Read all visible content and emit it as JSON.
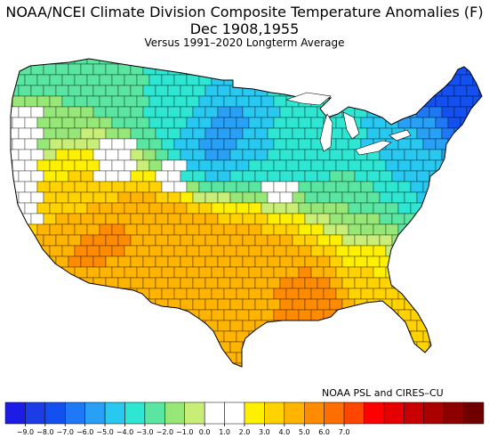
{
  "titles": {
    "main": "NOAA/NCEI Climate Division Composite Temperature Anomalies (F)",
    "period": "Dec  1908,1955",
    "baseline": "Versus 1991–2020 Longterm Average"
  },
  "credit": "NOAA PSL and CIRES–CU",
  "colors": {
    "missing": "#ffffff",
    "border": "#000000",
    "levels": [
      {
        "max": -8.5,
        "color": "#1c3ce6"
      },
      {
        "max": -7.5,
        "color": "#1450f0"
      },
      {
        "max": -6.5,
        "color": "#1f78f5"
      },
      {
        "max": -5.5,
        "color": "#28a0f5"
      },
      {
        "max": -4.5,
        "color": "#28c8f0"
      },
      {
        "max": -3.5,
        "color": "#2ee6d2"
      },
      {
        "max": -2.5,
        "color": "#5ae6a0"
      },
      {
        "max": -1.5,
        "color": "#96e678"
      },
      {
        "max": -0.5,
        "color": "#c8ee78"
      },
      {
        "max": 0.5,
        "color": "#fff000"
      },
      {
        "max": 1.5,
        "color": "#ffd200"
      },
      {
        "max": 2.5,
        "color": "#ffb400"
      },
      {
        "max": 3.5,
        "color": "#ff8c00"
      },
      {
        "max": 99,
        "color": "#ff6e00"
      }
    ]
  },
  "colorbar": {
    "bins": [
      {
        "color": "#1c1ce6"
      },
      {
        "color": "#1c3ce6"
      },
      {
        "color": "#1450f0"
      },
      {
        "color": "#1f78f5"
      },
      {
        "color": "#28a0f5"
      },
      {
        "color": "#28c8f0"
      },
      {
        "color": "#2ee6d2"
      },
      {
        "color": "#5ae6a0"
      },
      {
        "color": "#96e678"
      },
      {
        "color": "#c8ee78"
      },
      {
        "color": "#ffffff"
      },
      {
        "color": "#ffffff"
      },
      {
        "color": "#fff000"
      },
      {
        "color": "#ffd200"
      },
      {
        "color": "#ffb400"
      },
      {
        "color": "#ff8c00"
      },
      {
        "color": "#ff6e00"
      },
      {
        "color": "#ff4600"
      },
      {
        "color": "#ff0000"
      },
      {
        "color": "#e60000"
      },
      {
        "color": "#c80000"
      },
      {
        "color": "#aa0000"
      },
      {
        "color": "#8c0000"
      },
      {
        "color": "#700000"
      }
    ],
    "ticks": [
      "−9.0",
      "−8.0",
      "−7.0",
      "−6.0",
      "−5.0",
      "−4.0",
      "−3.0",
      "−2.0",
      "−1.0",
      "0.0",
      "1.0",
      "2.0",
      "3.0",
      "4.0",
      "5.0",
      "6.0",
      "7.0"
    ]
  }
}
